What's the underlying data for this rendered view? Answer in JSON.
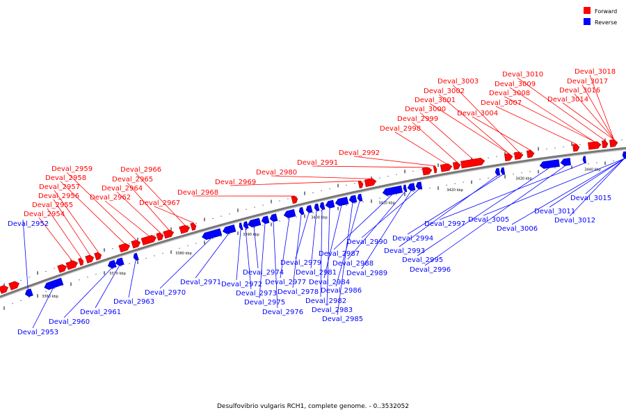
{
  "caption": "Desulfovibrio vulgaris RCH1, complete genome. - 0..3532052",
  "legend": {
    "forward": {
      "label": "Forward",
      "color": "#ff0000"
    },
    "reverse": {
      "label": "Reverse",
      "color": "#0000ff"
    }
  },
  "axis_color": "#777777",
  "kbp_labels": [
    "3360 kbp",
    "3370 kbp",
    "3380 kbp",
    "3390 kbp",
    "3400 kbp",
    "3410 kbp",
    "3420 kbp",
    "3430 kbp",
    "3440 kbp"
  ],
  "forward_labels": [
    "Deval_2954",
    "Deval_2955",
    "Deval_2956",
    "Deval_2957",
    "Deval_2958",
    "Deval_2959",
    "Deval_2962",
    "Deval_2964",
    "Deval_2965",
    "Deval_2966",
    "Deval_2967",
    "Deval_2968",
    "Deval_2969",
    "Deval_2980",
    "Deval_2991",
    "Deval_2992",
    "Deval_2998",
    "Deval_2999",
    "Deval_3000",
    "Deval_3001",
    "Deval_3002",
    "Deval_3003",
    "Deval_3004",
    "Deval_3007",
    "Deval_3008",
    "Deval_3009",
    "Deval_3010",
    "Deval_3014",
    "Deval_3016",
    "Deval_3017",
    "Deval_3018"
  ],
  "reverse_labels": [
    "Deval_2952",
    "Deval_2953",
    "Deval_2960",
    "Deval_2961",
    "Deval_2963",
    "Deval_2970",
    "Deval_2971",
    "Deval_2972",
    "Deval_2973",
    "Deval_2974",
    "Deval_2975",
    "Deval_2976",
    "Deval_2977",
    "Deval_2978",
    "Deval_2979",
    "Deval_2981",
    "Deval_2982",
    "Deval_2983",
    "Deval_2984",
    "Deval_2985",
    "Deval_2986",
    "Deval_2987",
    "Deval_2988",
    "Deval_2989",
    "Deval_2990",
    "Deval_2993",
    "Deval_2994",
    "Deval_2995",
    "Deval_2996",
    "Deval_2997",
    "Deval_3005",
    "Deval_3006",
    "Deval_3011",
    "Deval_3012",
    "Deval_3015"
  ]
}
